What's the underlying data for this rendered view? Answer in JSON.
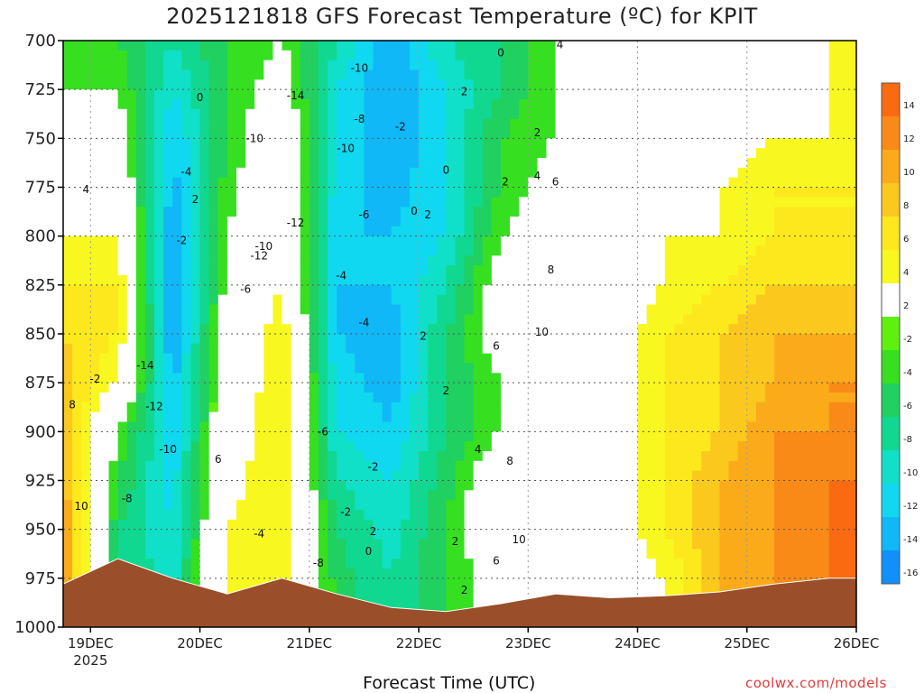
{
  "title": "2025121818 GFS Forecast Temperature (ºC) for KPIT",
  "credit": "coolwx.com/models",
  "chart_data": {
    "type": "heatmap",
    "title": "2025121818 GFS Forecast Temperature (ºC) for KPIT",
    "xlabel": "Forecast Time (UTC)",
    "ylabel": "",
    "x_ticks": [
      "19DEC 2025",
      "20DEC",
      "21DEC",
      "22DEC",
      "23DEC",
      "24DEC",
      "25DEC",
      "26DEC"
    ],
    "y_ticks": [
      700,
      725,
      750,
      775,
      800,
      825,
      850,
      875,
      900,
      925,
      950,
      975,
      1000
    ],
    "ylim": [
      1000,
      700
    ],
    "xlim_hours": [
      18,
      192
    ],
    "colorbar": {
      "ticks": [
        14,
        12,
        10,
        8,
        6,
        4,
        2,
        -2,
        -4,
        -6,
        -8,
        -10,
        -12,
        -14,
        -16
      ],
      "colors": [
        "#fa6a10",
        "#fa8a18",
        "#fbaa1a",
        "#fbc81e",
        "#fde81e",
        "#f8f820",
        "#ffffff",
        "#60f010",
        "#36e020",
        "#20d060",
        "#10d890",
        "#10e0c8",
        "#10d8f0",
        "#10b8f8",
        "#1090f8"
      ]
    },
    "columns": [
      {
        "hours_from_start": 0,
        "temps_700_to_1000": [
          -2,
          -2,
          0,
          2,
          4,
          6,
          8,
          9,
          10,
          11,
          12,
          12,
          12
        ],
        "surface_hpa": 978
      },
      {
        "hours_from_start": 12,
        "temps_700_to_1000": [
          -4,
          -2,
          0,
          2,
          4,
          6,
          6,
          4,
          -2,
          -4,
          -6,
          -6,
          -6
        ],
        "surface_hpa": 965
      },
      {
        "hours_from_start": 24,
        "temps_700_to_1000": [
          -8,
          -10,
          -12,
          -13,
          -14,
          -15,
          -14,
          -13,
          -12,
          -11,
          -10,
          -9,
          -8
        ],
        "surface_hpa": 975
      },
      {
        "hours_from_start": 36,
        "temps_700_to_1000": [
          -4,
          -4,
          -4,
          -3,
          -2,
          -1,
          0,
          1,
          2,
          3,
          4,
          4,
          4
        ],
        "surface_hpa": 983
      },
      {
        "hours_from_start": 48,
        "temps_700_to_1000": [
          -2,
          0,
          2,
          2,
          4,
          4,
          6,
          6,
          6,
          6,
          6,
          6,
          6
        ],
        "surface_hpa": 975
      },
      {
        "hours_from_start": 60,
        "temps_700_to_1000": [
          -8,
          -10,
          -10,
          -11,
          -12,
          -12,
          -12,
          -11,
          -10,
          -8,
          -6,
          -5,
          -4
        ],
        "surface_hpa": 983
      },
      {
        "hours_from_start": 72,
        "temps_700_to_1000": [
          -14,
          -14,
          -14,
          -13,
          -12,
          -12,
          -13,
          -13,
          -12,
          -10,
          -9,
          -8,
          -8
        ],
        "surface_hpa": 990
      },
      {
        "hours_from_start": 84,
        "temps_700_to_1000": [
          -8,
          -10,
          -10,
          -10,
          -10,
          -8,
          -6,
          -6,
          -6,
          -5,
          -4,
          -4,
          -4
        ],
        "surface_hpa": 992
      },
      {
        "hours_from_start": 96,
        "temps_700_to_1000": [
          -6,
          -6,
          -4,
          -4,
          -2,
          0,
          0,
          -2,
          -2,
          2,
          2,
          0,
          0
        ],
        "surface_hpa": 988
      },
      {
        "hours_from_start": 108,
        "temps_700_to_1000": [
          -2,
          -2,
          -2,
          0,
          0,
          0,
          2,
          2,
          2,
          2,
          2,
          2,
          2
        ],
        "surface_hpa": 983
      },
      {
        "hours_from_start": 120,
        "temps_700_to_1000": [
          -2,
          0,
          0,
          2,
          2,
          2,
          2,
          2,
          2,
          2,
          2,
          2,
          2
        ],
        "surface_hpa": 985
      },
      {
        "hours_from_start": 132,
        "temps_700_to_1000": [
          0,
          0,
          2,
          2,
          4,
          4,
          6,
          6,
          6,
          6,
          6,
          4,
          4
        ],
        "surface_hpa": 984
      },
      {
        "hours_from_start": 144,
        "temps_700_to_1000": [
          0,
          2,
          2,
          4,
          4,
          6,
          8,
          8,
          8,
          10,
          10,
          10,
          10
        ],
        "surface_hpa": 982
      },
      {
        "hours_from_start": 156,
        "temps_700_to_1000": [
          2,
          2,
          4,
          6,
          6,
          8,
          10,
          10,
          12,
          12,
          12,
          12,
          12
        ],
        "surface_hpa": 978
      },
      {
        "hours_from_start": 168,
        "temps_700_to_1000": [
          4,
          4,
          4,
          6,
          6,
          8,
          10,
          12,
          12,
          14,
          14,
          14,
          14
        ],
        "surface_hpa": 975
      }
    ],
    "contour_labels": [
      {
        "text": "4",
        "h": 5,
        "p": 778
      },
      {
        "text": "8",
        "h": 2,
        "p": 888
      },
      {
        "text": "10",
        "h": 4,
        "p": 940
      },
      {
        "text": "-2",
        "h": 7,
        "p": 875
      },
      {
        "text": "-14",
        "h": 18,
        "p": 868
      },
      {
        "text": "-12",
        "h": 20,
        "p": 889
      },
      {
        "text": "-10",
        "h": 23,
        "p": 911
      },
      {
        "text": "-8",
        "h": 14,
        "p": 936
      },
      {
        "text": "-4",
        "h": 27,
        "p": 769
      },
      {
        "text": "-2",
        "h": 26,
        "p": 804
      },
      {
        "text": "0",
        "h": 30,
        "p": 731
      },
      {
        "text": "2",
        "h": 29,
        "p": 783
      },
      {
        "text": "6",
        "h": 34,
        "p": 916
      },
      {
        "text": "-10",
        "h": 42,
        "p": 752
      },
      {
        "text": "-6",
        "h": 40,
        "p": 829
      },
      {
        "text": "-10",
        "h": 44,
        "p": 807
      },
      {
        "text": "-12",
        "h": 43,
        "p": 812
      },
      {
        "text": "-4",
        "h": 43,
        "p": 954
      },
      {
        "text": "-14",
        "h": 51,
        "p": 730
      },
      {
        "text": "-12",
        "h": 51,
        "p": 795
      },
      {
        "text": "-8",
        "h": 56,
        "p": 969
      },
      {
        "text": "-6",
        "h": 57,
        "p": 902
      },
      {
        "text": "-10",
        "h": 62,
        "p": 757
      },
      {
        "text": "-4",
        "h": 61,
        "p": 822
      },
      {
        "text": "-10",
        "h": 65,
        "p": 716
      },
      {
        "text": "-8",
        "h": 65,
        "p": 742
      },
      {
        "text": "-6",
        "h": 66,
        "p": 791
      },
      {
        "text": "-4",
        "h": 66,
        "p": 846
      },
      {
        "text": "-2",
        "h": 68,
        "p": 920
      },
      {
        "text": "-2",
        "h": 62,
        "p": 943
      },
      {
        "text": "2",
        "h": 68,
        "p": 953
      },
      {
        "text": "0",
        "h": 67,
        "p": 963
      },
      {
        "text": "-2",
        "h": 74,
        "p": 746
      },
      {
        "text": "0",
        "h": 77,
        "p": 789
      },
      {
        "text": "2",
        "h": 80,
        "p": 791
      },
      {
        "text": "2",
        "h": 79,
        "p": 853
      },
      {
        "text": "2",
        "h": 84,
        "p": 881
      },
      {
        "text": "2",
        "h": 86,
        "p": 958
      },
      {
        "text": "2",
        "h": 88,
        "p": 728
      },
      {
        "text": "0",
        "h": 84,
        "p": 768
      },
      {
        "text": "0",
        "h": 96,
        "p": 708
      },
      {
        "text": "2",
        "h": 97,
        "p": 774
      },
      {
        "text": "4",
        "h": 104,
        "p": 771
      },
      {
        "text": "6",
        "h": 108,
        "p": 774
      },
      {
        "text": "2",
        "h": 104,
        "p": 749
      },
      {
        "text": "8",
        "h": 107,
        "p": 819
      },
      {
        "text": "6",
        "h": 95,
        "p": 858
      },
      {
        "text": "10",
        "h": 105,
        "p": 851
      },
      {
        "text": "4",
        "h": 91,
        "p": 911
      },
      {
        "text": "8",
        "h": 98,
        "p": 917
      },
      {
        "text": "6",
        "h": 95,
        "p": 968
      },
      {
        "text": "10",
        "h": 100,
        "p": 957
      },
      {
        "text": "2",
        "h": 88,
        "p": 983
      },
      {
        "text": "4",
        "h": 109,
        "p": 704
      }
    ]
  }
}
